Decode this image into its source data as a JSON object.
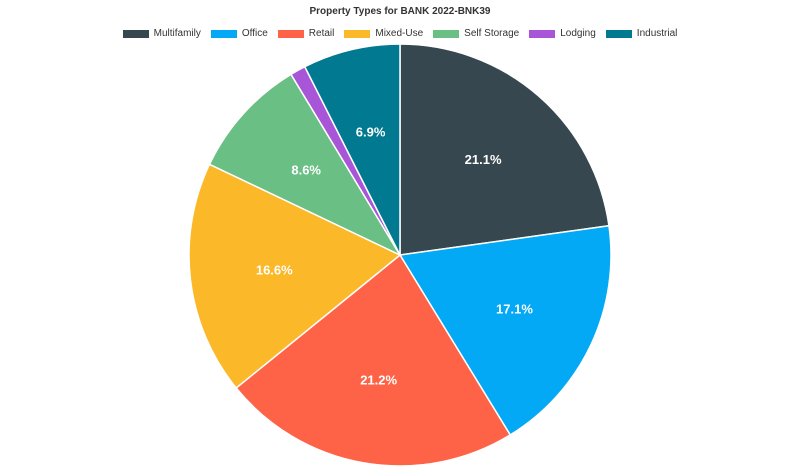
{
  "chart_data": {
    "type": "pie",
    "title": "Property Types for BANK 2022-BNK39",
    "legend_position": "top",
    "slices": [
      {
        "name": "Multifamily",
        "value": 21.1,
        "label": "21.1%",
        "color": "#37474f"
      },
      {
        "name": "Office",
        "value": 17.1,
        "label": "17.1%",
        "color": "#03a9f4"
      },
      {
        "name": "Retail",
        "value": 21.2,
        "label": "21.2%",
        "color": "#ff6347"
      },
      {
        "name": "Mixed-Use",
        "value": 16.6,
        "label": "16.6%",
        "color": "#fbb829"
      },
      {
        "name": "Self Storage",
        "value": 8.6,
        "label": "8.6%",
        "color": "#6abf85"
      },
      {
        "name": "Lodging",
        "value": 1.1,
        "label": "",
        "color": "#a855d8"
      },
      {
        "name": "Industrial",
        "value": 6.9,
        "label": "6.9%",
        "color": "#007991"
      }
    ]
  }
}
